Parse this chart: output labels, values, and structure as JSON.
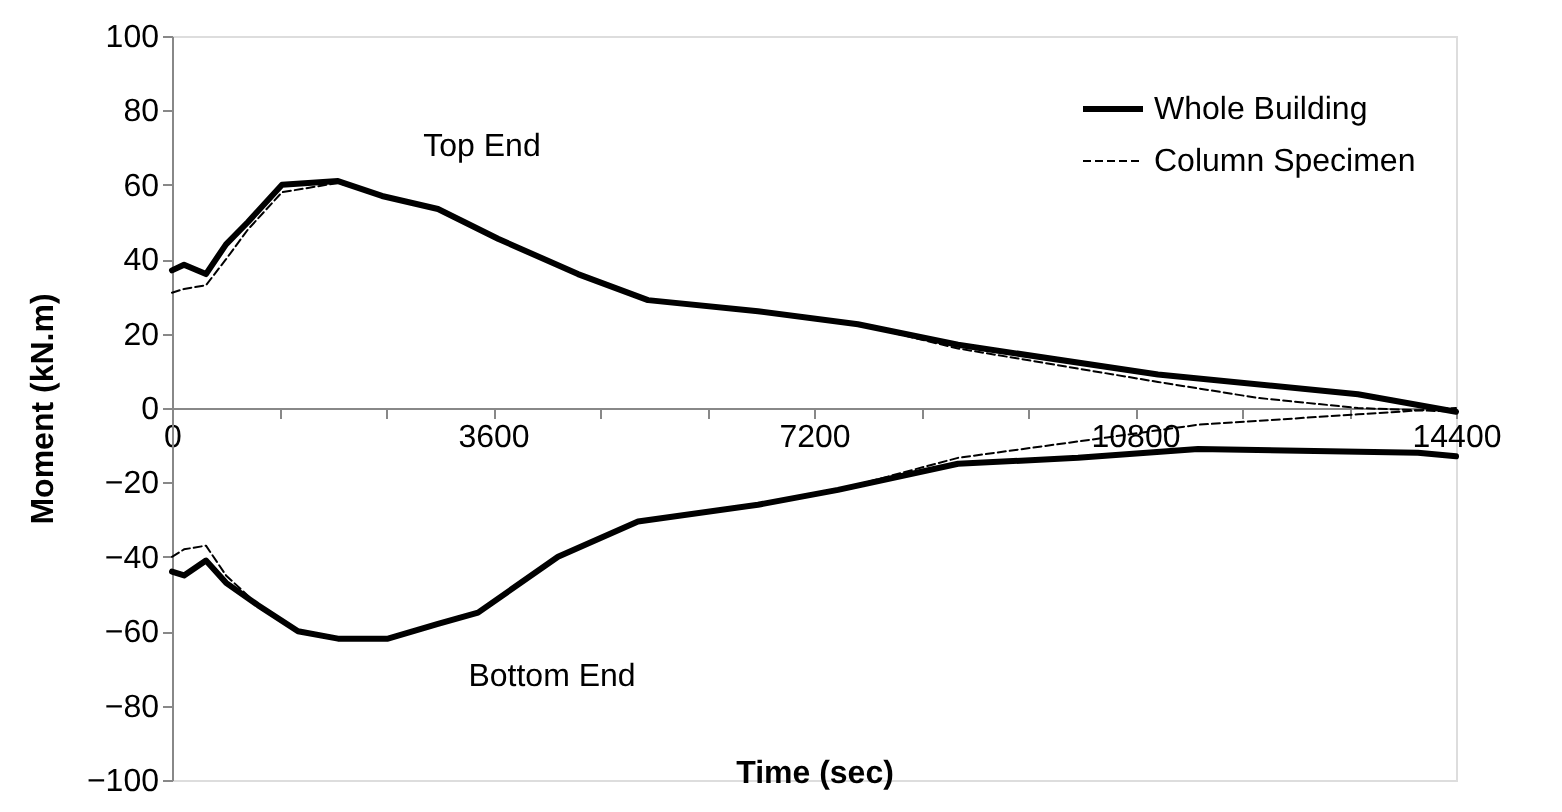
{
  "chart_data": {
    "type": "line",
    "xlabel": "Time (sec)",
    "ylabel": "Moment (kN.m)",
    "xlim": [
      0,
      14400
    ],
    "ylim": [
      -100,
      100
    ],
    "xticks": [
      0,
      {
        "value": 1200,
        "label": null
      },
      {
        "value": 2400,
        "label": null
      },
      3600,
      {
        "value": 4800,
        "label": null
      },
      {
        "value": 6000,
        "label": null
      },
      7200,
      {
        "value": 8400,
        "label": null
      },
      {
        "value": 9600,
        "label": null
      },
      10800,
      {
        "value": 12000,
        "label": null
      },
      {
        "value": 13200,
        "label": null
      },
      14400
    ],
    "yticks": [
      -100,
      -80,
      -60,
      -40,
      -20,
      0,
      20,
      40,
      60,
      80,
      100
    ],
    "grid": false,
    "legend": "top right",
    "marker": "none",
    "annotations": [
      "Top End",
      "Bottom End"
    ],
    "series": [
      {
        "name": "Whole Building",
        "color": "#000000",
        "line_style": "solid",
        "x": [
          0,
          135,
          381,
          606,
          852,
          1234,
          1862,
          2355,
          2983,
          3656,
          4553,
          5338,
          6572,
          7693,
          8815,
          11058,
          13301,
          14400
        ],
        "values": [
          37,
          38.5,
          36,
          44,
          50,
          60,
          61,
          57,
          53.5,
          45.5,
          36,
          29,
          26,
          22.5,
          17,
          9,
          3.7,
          -1
        ]
      },
      {
        "name": "Column Specimen",
        "color": "#000000",
        "line_style": "dashed",
        "x": [
          0,
          135,
          381,
          606,
          852,
          1234,
          1862,
          2355,
          2983,
          3656,
          4553,
          5338,
          6572,
          7693,
          8815,
          11058,
          12180,
          13301,
          14400
        ],
        "values": [
          31,
          32,
          33,
          40,
          48,
          58,
          60.5,
          57,
          53.5,
          45.5,
          36,
          29,
          26,
          22.5,
          16,
          7,
          2.7,
          0,
          -1
        ]
      },
      {
        "color": "#000000",
        "line_style": "solid",
        "x": [
          0,
          135,
          381,
          606,
          964,
          1413,
          1862,
          2422,
          2983,
          3432,
          4329,
          5226,
          6572,
          7469,
          8815,
          10161,
          11507,
          13974,
          14400
        ],
        "values": [
          -44,
          -45,
          -41,
          -47,
          -53,
          -60,
          -62,
          -62,
          -58,
          -55,
          -40,
          -30.5,
          -26,
          -22,
          -15,
          -13.4,
          -11,
          -12,
          -13
        ]
      },
      {
        "color": "#000000",
        "line_style": "dashed",
        "x": [
          0,
          135,
          381,
          606,
          964,
          1413,
          1862,
          2422,
          2983,
          3432,
          4329,
          5226,
          6572,
          7469,
          8815,
          10161,
          11507,
          13301,
          14400
        ],
        "values": [
          -40,
          -38,
          -37,
          -45,
          -53,
          -60,
          -62,
          -62,
          -58,
          -55,
          -40,
          -30.5,
          -26,
          -22,
          -13.4,
          -9,
          -4.5,
          -1.7,
          0
        ]
      }
    ]
  }
}
